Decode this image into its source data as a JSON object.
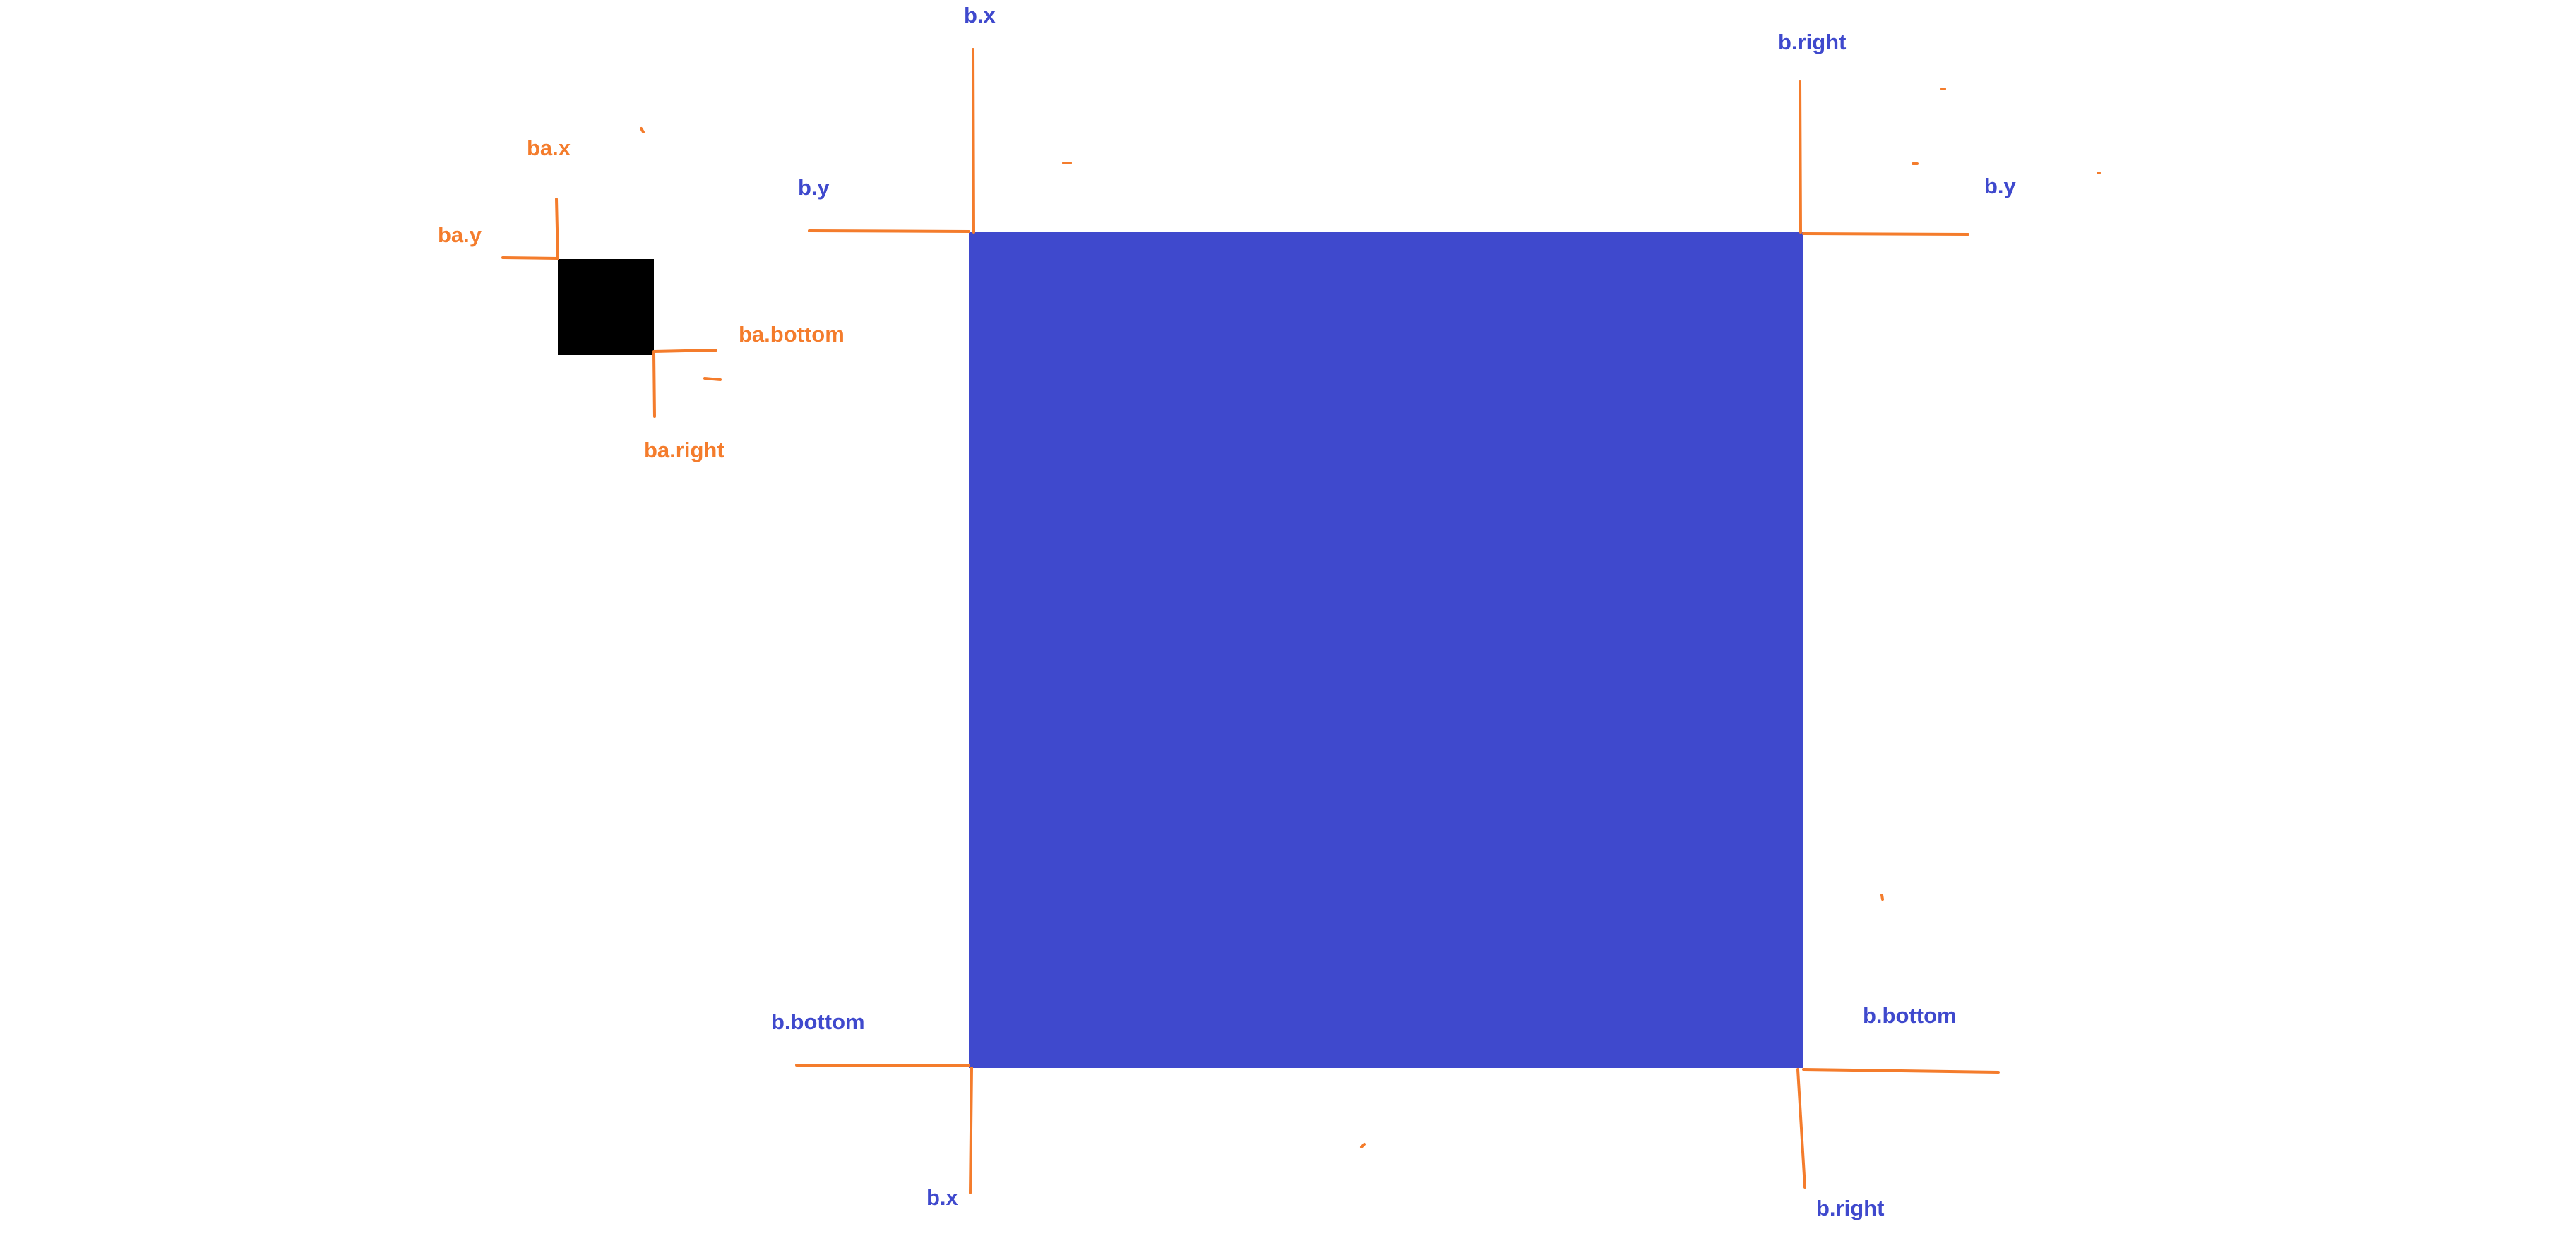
{
  "colors": {
    "background": "#ffffff",
    "big_box": "#3f49cd",
    "small_box": "#000000",
    "marker_lines": "#f47c2c",
    "label_blue": "#3f49cd",
    "label_orange": "#f47c2c"
  },
  "small_box_labels": {
    "x": "ba.x",
    "y": "ba.y",
    "bottom": "ba.bottom",
    "right": "ba.right"
  },
  "big_box_labels": {
    "top_left_x": "b.x",
    "top_left_y": "b.y",
    "top_right_right": "b.right",
    "top_right_y": "b.y",
    "bottom_left_bottom": "b.bottom",
    "bottom_left_x": "b.x",
    "bottom_right_bottom": "b.bottom",
    "bottom_right_right": "b.right"
  }
}
